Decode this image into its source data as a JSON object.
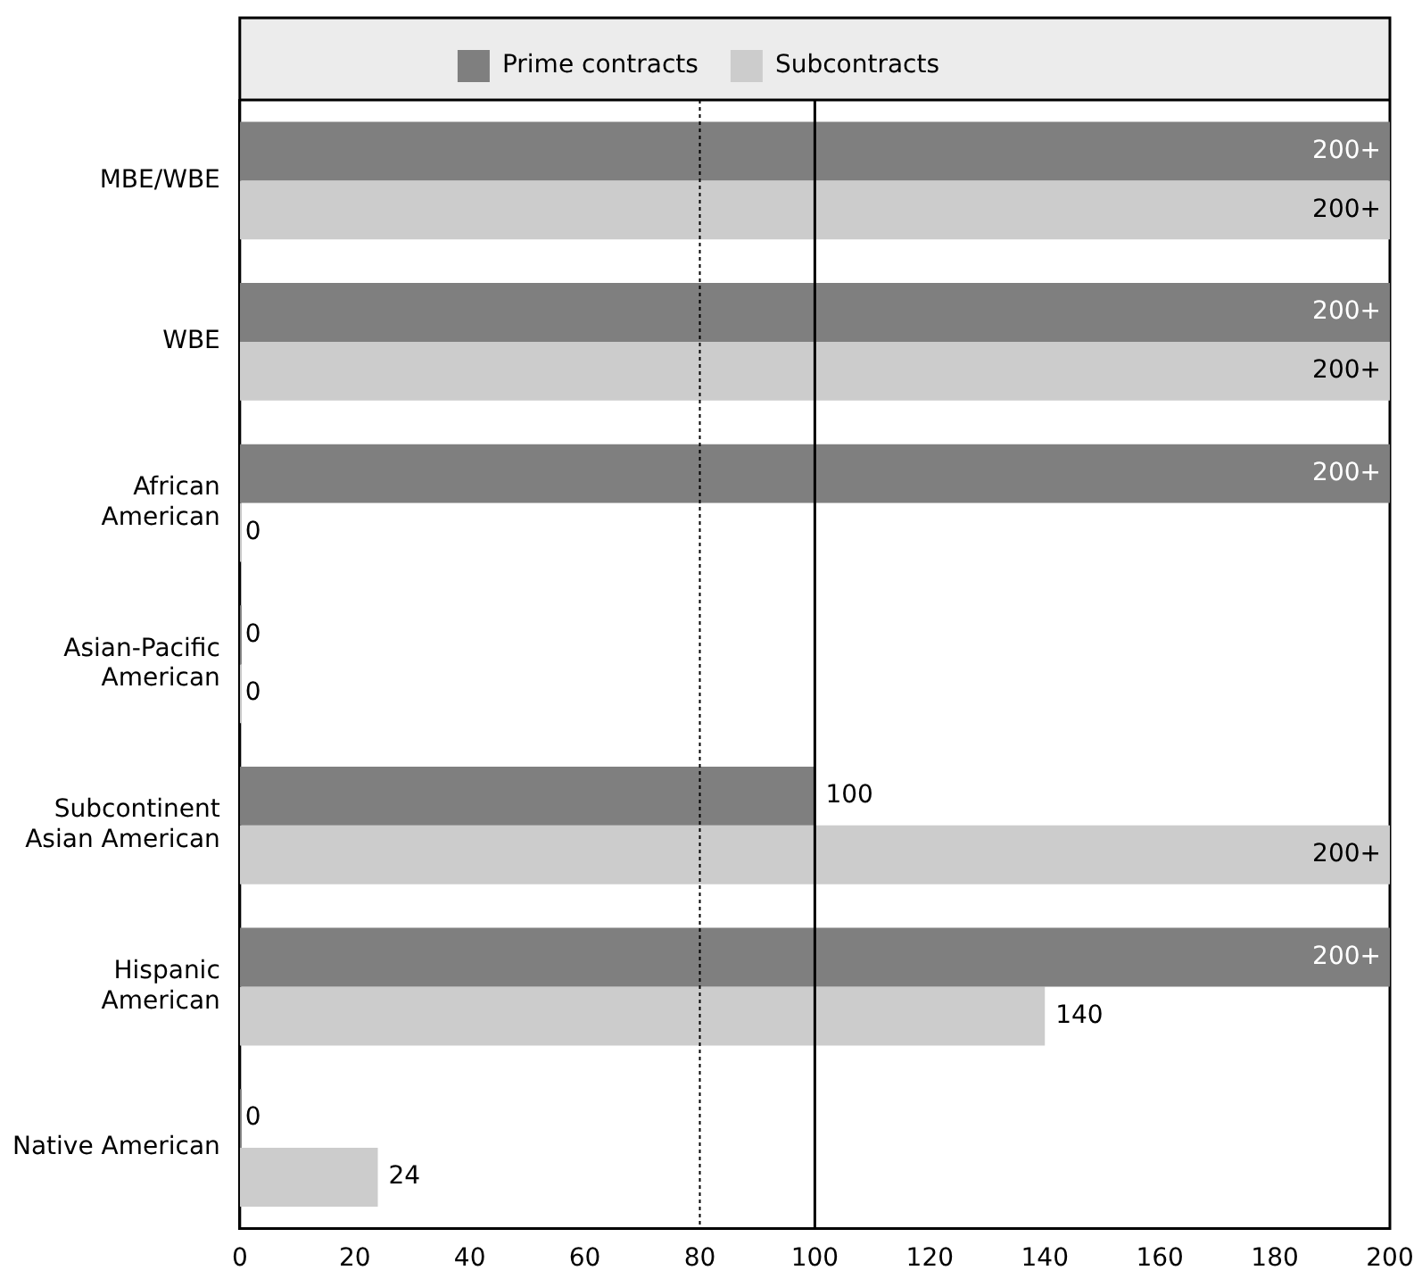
{
  "chart_data": {
    "type": "bar",
    "orientation": "horizontal",
    "categories": [
      "MBE/WBE",
      "WBE",
      "African American",
      "Asian-Pacific American",
      "Subcontinent Asian American",
      "Hispanic American",
      "Native American"
    ],
    "series": [
      {
        "name": "Prime contracts",
        "color": "#7f7f7f",
        "values": [
          200,
          200,
          200,
          0,
          100,
          200,
          0
        ],
        "value_labels": [
          "200+",
          "200+",
          "200+",
          "0",
          "100",
          "200+",
          "0"
        ]
      },
      {
        "name": "Subcontracts",
        "color": "#cccccc",
        "values": [
          200,
          200,
          0,
          0,
          200,
          140,
          24
        ],
        "value_labels": [
          "200+",
          "200+",
          "0",
          "0",
          "200+",
          "140",
          "24"
        ]
      }
    ],
    "xlim": [
      0,
      200
    ],
    "xticks": [
      0,
      20,
      40,
      60,
      80,
      100,
      120,
      140,
      160,
      180,
      200
    ],
    "ref_lines": [
      {
        "axis": "x",
        "value": 80,
        "color": "#000000",
        "line_style": "dotted"
      },
      {
        "axis": "x",
        "value": 100,
        "color": "#000000",
        "line_style": "solid"
      }
    ],
    "legend": "top",
    "grid": false
  }
}
